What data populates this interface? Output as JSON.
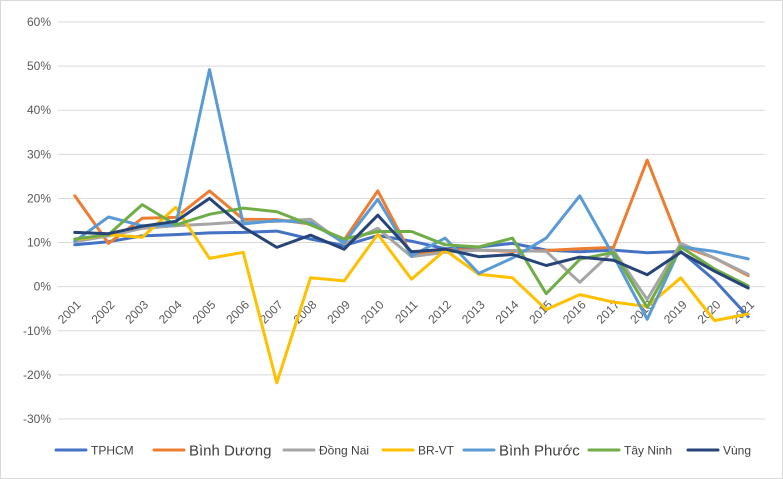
{
  "chart_data": {
    "type": "line",
    "title": "",
    "xlabel": "",
    "ylabel": "",
    "ylim": [
      -30,
      60
    ],
    "yticks": [
      60,
      50,
      40,
      30,
      20,
      10,
      0,
      -10,
      -20,
      -30
    ],
    "ytick_labels": [
      "60%",
      "50%",
      "40%",
      "30%",
      "20%",
      "10%",
      "0%",
      "-10%",
      "-20%",
      "-30%"
    ],
    "grid": "horizontal",
    "legend_position": "bottom",
    "categories": [
      "2001",
      "2002",
      "2003",
      "2004",
      "2005",
      "2006",
      "2007",
      "2008",
      "2009",
      "2010",
      "2011",
      "2012",
      "2013",
      "2014",
      "2015",
      "2016",
      "2017",
      "2018",
      "2019",
      "2020",
      "2021"
    ],
    "series": [
      {
        "name": "TPHCM",
        "color": "#4472c4",
        "values": [
          9.5,
          10.2,
          11.5,
          11.8,
          12.2,
          12.3,
          12.6,
          10.8,
          9.3,
          11.6,
          10.3,
          8.6,
          9.0,
          9.8,
          8.3,
          7.9,
          8.3,
          7.7,
          8.0,
          1.5,
          -6.8
        ]
      },
      {
        "name": "Bình Dương",
        "color": "#ed7d31",
        "values": [
          20.6,
          9.8,
          15.5,
          15.7,
          21.7,
          15.3,
          15.2,
          14.2,
          10.6,
          21.7,
          7.2,
          8.4,
          8.3,
          8.0,
          8.2,
          8.6,
          8.9,
          28.7,
          9.3,
          6.5,
          2.5
        ]
      },
      {
        "name": "Đồng Nai",
        "color": "#a5a5a5",
        "values": [
          10.2,
          11.5,
          13.2,
          13.8,
          14.2,
          14.7,
          14.8,
          15.3,
          9.7,
          13.2,
          6.8,
          7.8,
          8.3,
          8.2,
          8.0,
          1.0,
          8.2,
          -2.9,
          9.8,
          6.5,
          2.8
        ]
      },
      {
        "name": "BR-VT",
        "color": "#ffc000",
        "values": [
          10.6,
          11.8,
          11.2,
          18.0,
          6.4,
          7.8,
          -21.8,
          2.0,
          1.3,
          11.9,
          1.7,
          8.3,
          2.8,
          2.0,
          -5.2,
          -1.8,
          -3.5,
          -4.5,
          2.0,
          -7.7,
          -6.2
        ]
      },
      {
        "name": "Bình Phước",
        "color": "#5b9bd5",
        "values": [
          10.3,
          15.8,
          13.8,
          14.0,
          49.2,
          14.2,
          15.0,
          14.5,
          10.0,
          19.8,
          7.0,
          11.0,
          3.0,
          6.5,
          11.0,
          20.6,
          7.0,
          -7.4,
          9.0,
          8.0,
          6.3
        ]
      },
      {
        "name": "Tây Ninh",
        "color": "#70ad47",
        "values": [
          10.8,
          11.8,
          18.6,
          14.0,
          16.4,
          17.8,
          17.0,
          14.0,
          10.8,
          12.5,
          12.5,
          9.5,
          9.0,
          11.0,
          -1.6,
          6.2,
          7.8,
          -4.7,
          9.0,
          4.0,
          0.2
        ]
      },
      {
        "name": "Vùng",
        "color": "#264478",
        "values": [
          12.3,
          12.0,
          13.7,
          14.8,
          20.0,
          13.5,
          8.9,
          11.7,
          8.5,
          16.2,
          7.9,
          8.5,
          6.8,
          7.3,
          4.8,
          6.7,
          6.0,
          2.7,
          7.8,
          3.5,
          -0.3
        ]
      }
    ]
  }
}
